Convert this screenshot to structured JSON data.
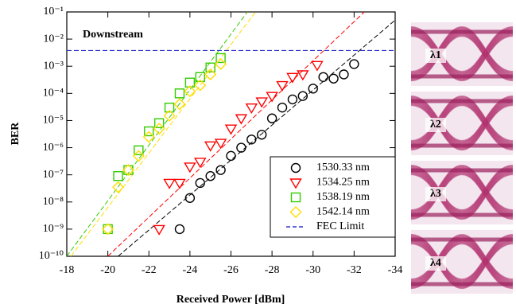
{
  "chart_data": {
    "type": "scatter",
    "annotation": "Downstream",
    "x_label": "Received Power [dBm]",
    "y_label": "BER",
    "xlim": [
      -18,
      -34
    ],
    "xticks": [
      -18,
      -20,
      -22,
      -24,
      -26,
      -28,
      -30,
      -32,
      -34
    ],
    "ylim": [
      1e-10,
      0.1
    ],
    "log_y": true,
    "yticks": [
      {
        "value": 1e-10,
        "label": "10⁻¹⁰"
      },
      {
        "value": 1e-09,
        "label": "10⁻⁹"
      },
      {
        "value": 1e-08,
        "label": "10⁻⁸"
      },
      {
        "value": 1e-07,
        "label": "10⁻⁷"
      },
      {
        "value": 1e-06,
        "label": "10⁻⁶"
      },
      {
        "value": 1e-05,
        "label": "10⁻⁵"
      },
      {
        "value": 0.0001,
        "label": "10⁻⁴"
      },
      {
        "value": 0.001,
        "label": "10⁻³"
      },
      {
        "value": 0.01,
        "label": "10⁻²"
      },
      {
        "value": 0.1,
        "label": "10⁻¹"
      }
    ],
    "legend": "lower right",
    "series": [
      {
        "name": "1530.33 nm",
        "color": "#000000",
        "marker": "circle",
        "x": [
          -23.5,
          -24,
          -24.5,
          -25,
          -25.5,
          -26,
          -26.5,
          -27,
          -27.5,
          -28,
          -28.5,
          -29,
          -29.5,
          -30,
          -30.5,
          -31,
          -31.5,
          -32
        ],
        "values": [
          1e-09,
          1.4e-08,
          5e-08,
          9e-08,
          1.5e-07,
          5e-07,
          1e-06,
          2e-06,
          3e-06,
          1.2e-05,
          3e-05,
          6e-05,
          8e-05,
          0.00015,
          0.0004,
          0.00035,
          0.0005,
          0.0012
        ]
      },
      {
        "name": "1534.25 nm",
        "color": "#ff0000",
        "marker": "triangle-down",
        "x": [
          -22.5,
          -23,
          -23.5,
          -24,
          -24.5,
          -25,
          -25.5,
          -26,
          -26.5,
          -27,
          -27.5,
          -28,
          -28.5,
          -29,
          -29.5,
          -30.2
        ],
        "values": [
          1e-09,
          5e-08,
          5e-08,
          2e-07,
          3e-07,
          1.2e-06,
          1.5e-06,
          5e-06,
          1.2e-05,
          3e-05,
          5e-05,
          8e-05,
          0.0002,
          0.0004,
          0.0005,
          0.0011
        ]
      },
      {
        "name": "1538.19 nm",
        "color": "#33cc00",
        "marker": "square",
        "x": [
          -20,
          -20.5,
          -21,
          -21.5,
          -22,
          -22.5,
          -23,
          -23.5,
          -24,
          -24.5,
          -25,
          -25.5
        ],
        "values": [
          1e-09,
          9e-08,
          1.5e-07,
          8e-07,
          4e-06,
          8e-06,
          3e-05,
          0.0001,
          0.00025,
          0.0004,
          0.0009,
          0.002
        ]
      },
      {
        "name": "1542.14 nm",
        "color": "#ffdd00",
        "marker": "diamond",
        "x": [
          -20,
          -20.5,
          -21,
          -21.5,
          -22,
          -22.5,
          -23,
          -23.5,
          -24,
          -24.5,
          -25,
          -25.5
        ],
        "values": [
          1e-09,
          3.5e-08,
          1.5e-07,
          5e-07,
          2.5e-06,
          5e-06,
          1.5e-05,
          4e-05,
          0.00012,
          0.0002,
          0.0005,
          0.0012
        ]
      },
      {
        "name": "FEC Limit",
        "color": "#3333cc",
        "marker": "dashed-line",
        "x": [
          -18,
          -34
        ],
        "values": [
          0.0038,
          0.0038
        ]
      }
    ],
    "fit_lines": [
      {
        "color": "#000000",
        "x": [
          -20.5,
          -34
        ],
        "values": [
          1e-10,
          0.05
        ]
      },
      {
        "color": "#ff0000",
        "x": [
          -20,
          -32.5
        ],
        "values": [
          1e-10,
          0.1
        ]
      },
      {
        "color": "#33cc00",
        "x": [
          -18,
          -26.8
        ],
        "values": [
          1e-10,
          0.1
        ]
      },
      {
        "color": "#ffdd00",
        "x": [
          -18.2,
          -27.2
        ],
        "values": [
          1e-10,
          0.1
        ]
      }
    ]
  },
  "eye_diagrams": [
    "λ1",
    "λ2",
    "λ3",
    "λ4"
  ]
}
